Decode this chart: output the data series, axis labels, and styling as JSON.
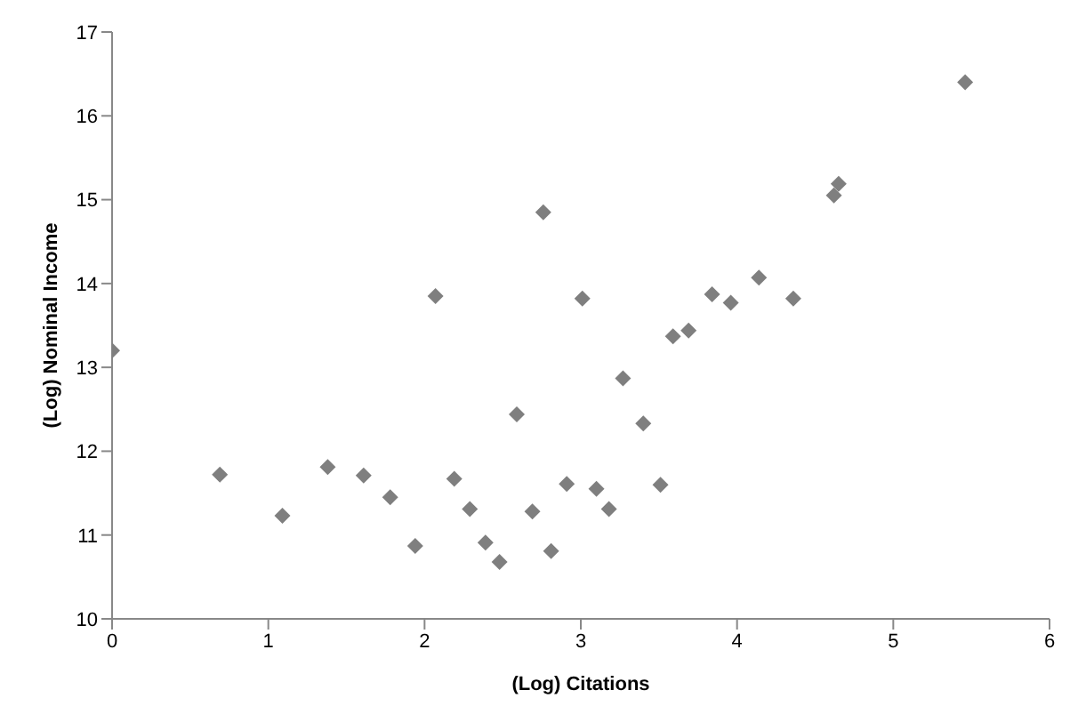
{
  "chart_data": {
    "type": "scatter",
    "xlabel": "(Log) Citations",
    "ylabel": "(Log) Nominal Income",
    "x": [
      0,
      0.69,
      1.09,
      1.38,
      1.61,
      1.78,
      1.94,
      2.07,
      2.19,
      2.29,
      2.39,
      2.48,
      2.59,
      2.69,
      2.76,
      2.81,
      2.91,
      3.01,
      3.1,
      3.18,
      3.27,
      3.4,
      3.51,
      3.59,
      3.69,
      3.84,
      3.96,
      4.14,
      4.36,
      4.62,
      4.65,
      5.46
    ],
    "series": [
      {
        "color": "#7f7f7f",
        "values": [
          13.2,
          11.72,
          11.23,
          11.81,
          11.71,
          11.45,
          10.87,
          13.85,
          11.67,
          11.31,
          10.91,
          10.68,
          12.44,
          11.28,
          14.85,
          10.81,
          11.61,
          13.82,
          11.55,
          11.31,
          12.87,
          12.33,
          11.6,
          13.37,
          13.44,
          13.87,
          13.77,
          14.07,
          13.82,
          15.05,
          15.19,
          16.4
        ]
      }
    ],
    "xlim": [
      0,
      6
    ],
    "xticks": [
      0,
      1,
      2,
      3,
      4,
      5,
      6
    ],
    "ylim": [
      10,
      17
    ],
    "yticks": [
      10,
      11,
      12,
      13,
      14,
      15,
      16,
      17
    ],
    "grid": false,
    "legend": false,
    "marker": "diamond"
  }
}
